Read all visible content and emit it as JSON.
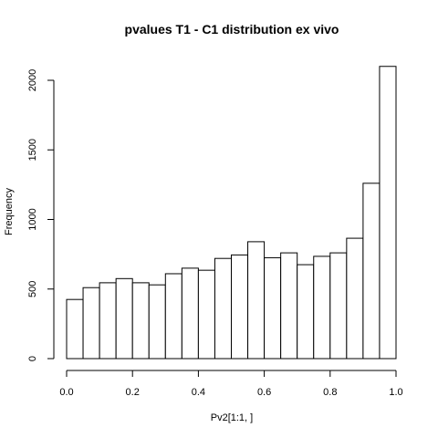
{
  "chart_data": {
    "type": "bar",
    "title": "pvalues T1 - C1 distribution ex vivo",
    "xlabel": "Pv2[1:1, ]",
    "ylabel": "Frequency",
    "xlim": [
      0.0,
      1.0
    ],
    "ylim": [
      0,
      2100
    ],
    "x_ticks": [
      0.0,
      0.2,
      0.4,
      0.6,
      0.8,
      1.0
    ],
    "x_tick_labels": [
      "0.0",
      "0.2",
      "0.4",
      "0.6",
      "0.8",
      "1.0"
    ],
    "y_ticks": [
      0,
      500,
      1000,
      1500,
      2000
    ],
    "y_tick_labels": [
      "0",
      "500",
      "1000",
      "1500",
      "2000"
    ],
    "bin_edges": [
      0.0,
      0.05,
      0.1,
      0.15,
      0.2,
      0.25,
      0.3,
      0.35,
      0.4,
      0.45,
      0.5,
      0.55,
      0.6,
      0.65,
      0.7,
      0.75,
      0.8,
      0.85,
      0.9,
      0.95,
      1.0
    ],
    "values": [
      425,
      510,
      545,
      575,
      545,
      530,
      610,
      650,
      635,
      720,
      745,
      840,
      725,
      760,
      675,
      735,
      760,
      865,
      1260,
      2100
    ],
    "grid": false,
    "legend": "none"
  }
}
